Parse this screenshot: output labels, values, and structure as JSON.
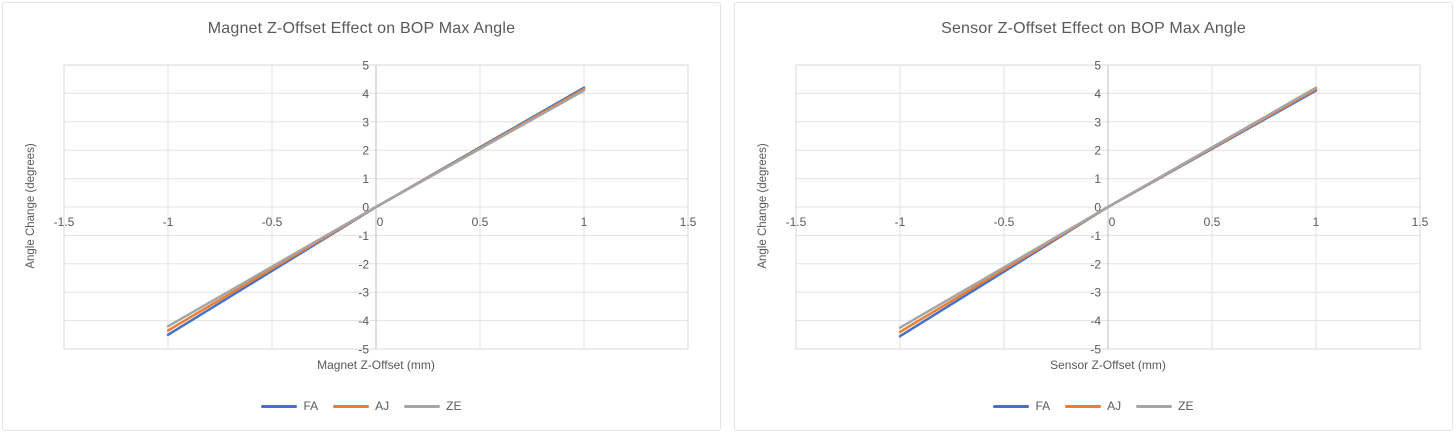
{
  "page": {
    "background": "#ffffff",
    "card_border": "#e3e3e3"
  },
  "colors": {
    "text": "#595959",
    "gridline": "#e2e2e2",
    "axis_line": "#bfbfbf",
    "plot_border": "#d9d9d9"
  },
  "chart_data": [
    {
      "type": "line",
      "title": "Magnet Z-Offset Effect on BOP Max Angle",
      "xlabel": "Magnet Z-Offset (mm)",
      "ylabel": "Angle Change (degrees)",
      "xlim": [
        -1.5,
        1.5
      ],
      "ylim": [
        -5,
        5
      ],
      "xticks": [
        -1.5,
        -1,
        -0.5,
        0,
        0.5,
        1,
        1.5
      ],
      "yticks": [
        -5,
        -4,
        -3,
        -2,
        -1,
        0,
        1,
        2,
        3,
        4,
        5
      ],
      "grid": true,
      "legend_position": "bottom",
      "x": [
        -1,
        0,
        1
      ],
      "series": [
        {
          "name": "FA",
          "color": "#4472C4",
          "values": [
            -4.5,
            0,
            4.2
          ]
        },
        {
          "name": "AJ",
          "color": "#ED7D31",
          "values": [
            -4.35,
            0,
            4.15
          ]
        },
        {
          "name": "ZE",
          "color": "#A5A5A5",
          "values": [
            -4.2,
            0,
            4.1
          ]
        }
      ]
    },
    {
      "type": "line",
      "title": "Sensor Z-Offset Effect on BOP Max Angle",
      "xlabel": "Sensor Z-Offset (mm)",
      "ylabel": "Angle Change (degrees)",
      "xlim": [
        -1.5,
        1.5
      ],
      "ylim": [
        -5,
        5
      ],
      "xticks": [
        -1.5,
        -1,
        -0.5,
        0,
        0.5,
        1,
        1.5
      ],
      "yticks": [
        -5,
        -4,
        -3,
        -2,
        -1,
        0,
        1,
        2,
        3,
        4,
        5
      ],
      "grid": true,
      "legend_position": "bottom",
      "x": [
        -1,
        0,
        1
      ],
      "series": [
        {
          "name": "FA",
          "color": "#4472C4",
          "values": [
            -4.55,
            0,
            4.1
          ]
        },
        {
          "name": "AJ",
          "color": "#ED7D31",
          "values": [
            -4.4,
            0,
            4.15
          ]
        },
        {
          "name": "ZE",
          "color": "#A5A5A5",
          "values": [
            -4.25,
            0,
            4.2
          ]
        }
      ]
    }
  ]
}
